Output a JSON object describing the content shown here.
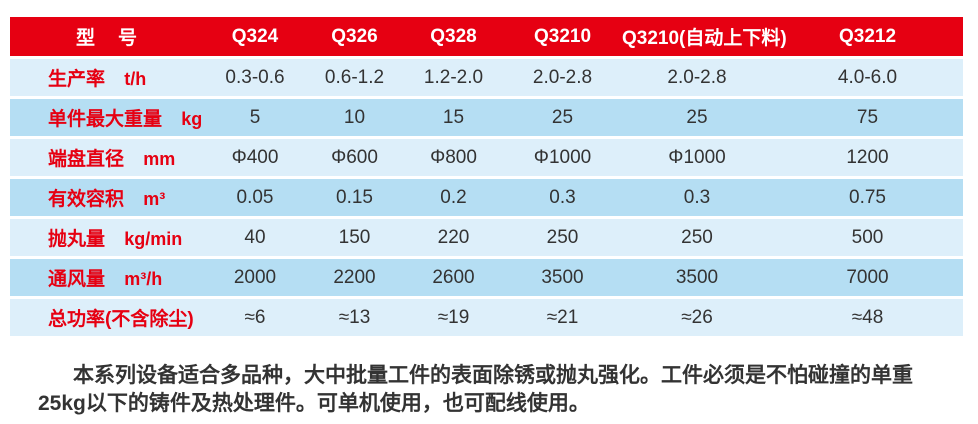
{
  "table": {
    "header": {
      "model_label": "型　号",
      "models": [
        "Q324",
        "Q326",
        "Q328",
        "Q3210",
        "Q3210(自动上下料)",
        "Q3212"
      ]
    },
    "rows": [
      {
        "label": "生产率",
        "unit": "t/h",
        "values": [
          "0.3-0.6",
          "0.6-1.2",
          "1.2-2.0",
          "2.0-2.8",
          "2.0-2.8",
          "4.0-6.0"
        ]
      },
      {
        "label": "单件最大重量",
        "unit": "kg",
        "values": [
          "5",
          "10",
          "15",
          "25",
          "25",
          "75"
        ]
      },
      {
        "label": "端盘直径",
        "unit": "mm",
        "values": [
          "Φ400",
          "Φ600",
          "Φ800",
          "Φ1000",
          "Φ1000",
          "1200"
        ]
      },
      {
        "label": "有效容积",
        "unit": "m³",
        "values": [
          "0.05",
          "0.15",
          "0.2",
          "0.3",
          "0.3",
          "0.75"
        ]
      },
      {
        "label": "抛丸量",
        "unit": "kg/min",
        "values": [
          "40",
          "150",
          "220",
          "250",
          "250",
          "500"
        ]
      },
      {
        "label": "通风量",
        "unit": "m³/h",
        "values": [
          "2000",
          "2200",
          "2600",
          "3500",
          "3500",
          "7000"
        ]
      },
      {
        "label": "总功率(不含除尘)",
        "unit": "",
        "values": [
          "≈6",
          "≈13",
          "≈19",
          "≈21",
          "≈26",
          "≈48"
        ]
      }
    ]
  },
  "description": {
    "line1": "本系列设备适合多品种，大中批量工件的表面除锈或抛丸强化。工件必须是不怕碰撞的单重",
    "line2": "25kg以下的铸件及热处理件。可单机使用，也可配线使用。"
  },
  "colors": {
    "header_red": "#e60012",
    "label_red": "#e60012",
    "row_light_blue": "#ddeffa",
    "row_mid_blue": "#b5def3",
    "value_text": "#333333",
    "header_text": "#ffffff"
  }
}
